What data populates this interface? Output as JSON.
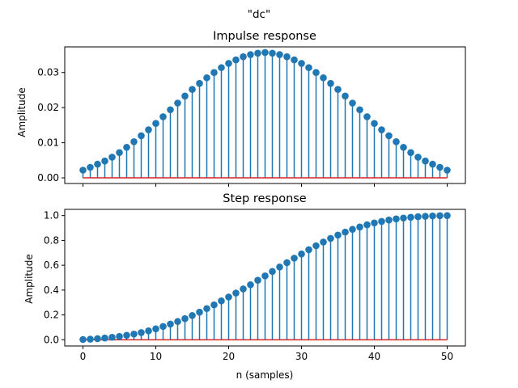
{
  "figure": {
    "suptitle": "\"dc\""
  },
  "colors": {
    "stem": "#1f77b4",
    "baseline": "#d62728",
    "axes": "#000000",
    "background": "#ffffff"
  },
  "chart_data": [
    {
      "type": "stem",
      "title": "Impulse response",
      "xlabel": "",
      "ylabel": "Amplitude",
      "xlim": [
        -2.5,
        52.5
      ],
      "ylim": [
        -0.0016,
        0.0373
      ],
      "xticks": [
        0,
        10,
        20,
        30,
        40,
        50
      ],
      "xtick_labels_visible": false,
      "yticks": [
        0,
        0.01,
        0.02,
        0.03
      ],
      "ytick_labels": [
        "0.00",
        "0.01",
        "0.02",
        "0.03"
      ],
      "baseline": 0,
      "grid": false,
      "x": [
        0,
        1,
        2,
        3,
        4,
        5,
        6,
        7,
        8,
        9,
        10,
        11,
        12,
        13,
        14,
        15,
        16,
        17,
        18,
        19,
        20,
        21,
        22,
        23,
        24,
        25,
        26,
        27,
        28,
        29,
        30,
        31,
        32,
        33,
        34,
        35,
        36,
        37,
        38,
        39,
        40,
        41,
        42,
        43,
        44,
        45,
        46,
        47,
        48,
        49,
        50
      ],
      "y": [
        0.0022,
        0.003,
        0.0039,
        0.0048,
        0.0059,
        0.0072,
        0.0087,
        0.0103,
        0.012,
        0.0137,
        0.0155,
        0.0174,
        0.0194,
        0.0213,
        0.0233,
        0.0252,
        0.0269,
        0.0285,
        0.03,
        0.0314,
        0.0326,
        0.0336,
        0.0345,
        0.0351,
        0.0355,
        0.0357,
        0.0355,
        0.0351,
        0.0345,
        0.0336,
        0.0326,
        0.0314,
        0.03,
        0.0285,
        0.0269,
        0.0252,
        0.0233,
        0.0213,
        0.0194,
        0.0174,
        0.0155,
        0.0137,
        0.012,
        0.0103,
        0.0087,
        0.0072,
        0.0059,
        0.0048,
        0.0039,
        0.003,
        0.0022
      ]
    },
    {
      "type": "stem",
      "title": "Step response",
      "xlabel": "n (samples)",
      "ylabel": "Amplitude",
      "xlim": [
        -2.5,
        52.5
      ],
      "ylim": [
        -0.05,
        1.05
      ],
      "xticks": [
        0,
        10,
        20,
        30,
        40,
        50
      ],
      "xtick_labels": [
        "0",
        "10",
        "20",
        "30",
        "40",
        "50"
      ],
      "yticks": [
        0,
        0.2,
        0.4,
        0.6,
        0.8,
        1.0
      ],
      "ytick_labels": [
        "0.0",
        "0.2",
        "0.4",
        "0.6",
        "0.8",
        "1.0"
      ],
      "baseline": 0,
      "grid": false,
      "x": [
        0,
        1,
        2,
        3,
        4,
        5,
        6,
        7,
        8,
        9,
        10,
        11,
        12,
        13,
        14,
        15,
        16,
        17,
        18,
        19,
        20,
        21,
        22,
        23,
        24,
        25,
        26,
        27,
        28,
        29,
        30,
        31,
        32,
        33,
        34,
        35,
        36,
        37,
        38,
        39,
        40,
        41,
        42,
        43,
        44,
        45,
        46,
        47,
        48,
        49,
        50
      ],
      "y": [
        0.002,
        0.005,
        0.009,
        0.014,
        0.02,
        0.027,
        0.036,
        0.046,
        0.058,
        0.072,
        0.088,
        0.107,
        0.126,
        0.147,
        0.17,
        0.195,
        0.222,
        0.251,
        0.281,
        0.313,
        0.344,
        0.376,
        0.409,
        0.443,
        0.479,
        0.514,
        0.55,
        0.586,
        0.621,
        0.657,
        0.691,
        0.725,
        0.757,
        0.787,
        0.816,
        0.843,
        0.867,
        0.889,
        0.908,
        0.926,
        0.941,
        0.953,
        0.964,
        0.973,
        0.98,
        0.986,
        0.991,
        0.994,
        0.997,
        0.999,
        1.0
      ]
    }
  ]
}
